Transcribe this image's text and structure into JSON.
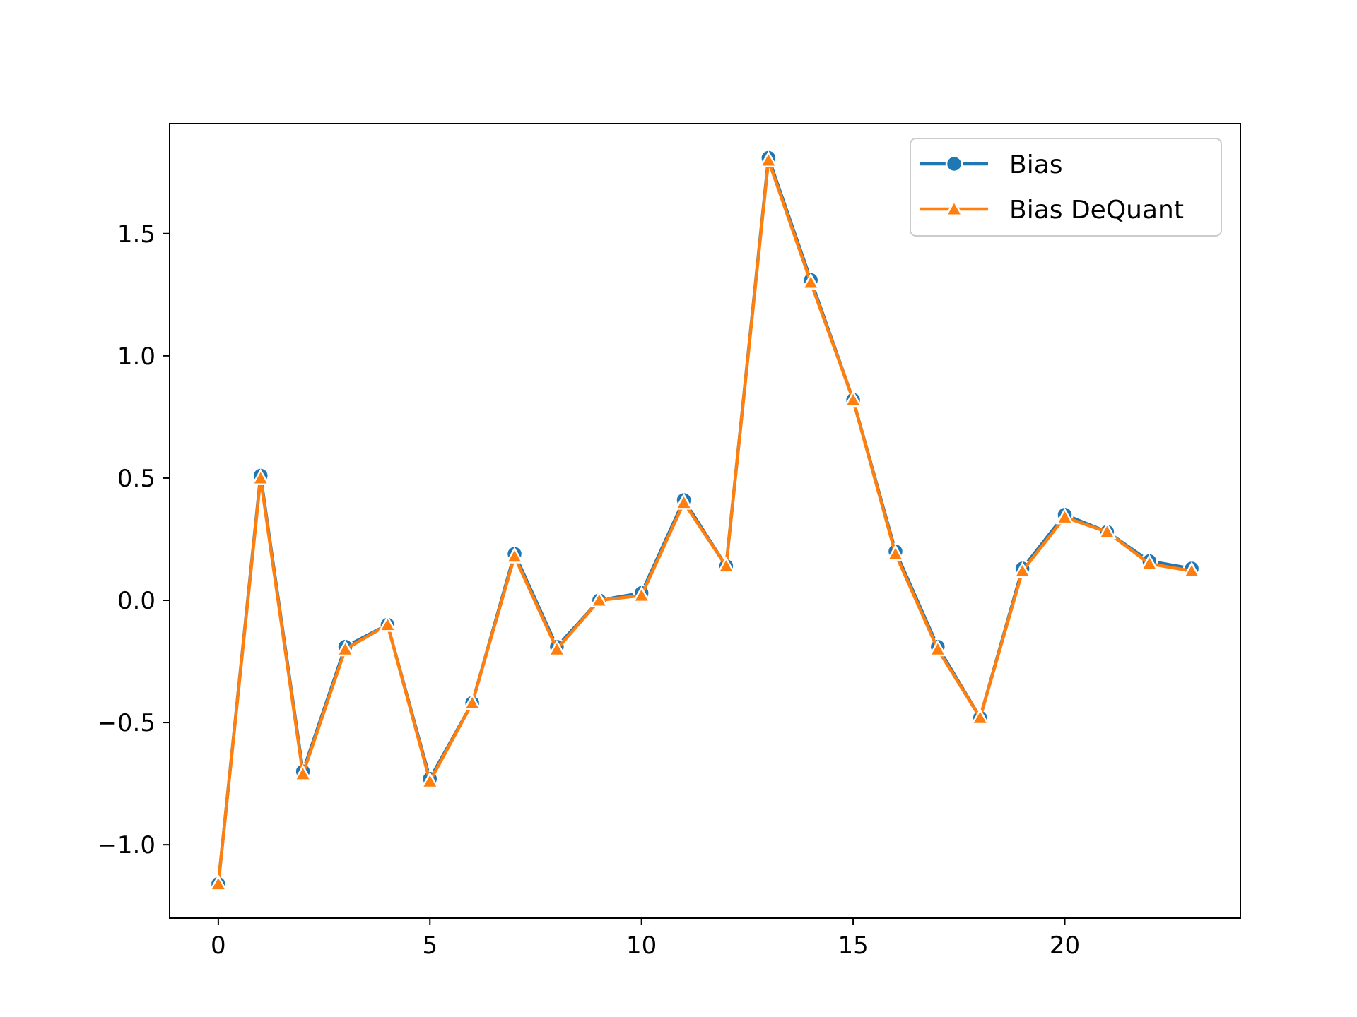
{
  "chart_data": {
    "type": "line",
    "title": "",
    "xlabel": "",
    "ylabel": "",
    "x": [
      0,
      1,
      2,
      3,
      4,
      5,
      6,
      7,
      8,
      9,
      10,
      11,
      12,
      13,
      14,
      15,
      16,
      17,
      18,
      19,
      20,
      21,
      22,
      23
    ],
    "xlim": [
      -1.15,
      24.15
    ],
    "ylim": [
      -1.3,
      1.95
    ],
    "x_ticks": [
      0,
      5,
      10,
      15,
      20
    ],
    "x_tick_labels": [
      "0",
      "5",
      "10",
      "15",
      "20"
    ],
    "y_ticks": [
      -1.0,
      -0.5,
      0.0,
      0.5,
      1.0,
      1.5
    ],
    "y_tick_labels": [
      "−1.0",
      "−0.5",
      "0.0",
      "0.5",
      "1.0",
      "1.5"
    ],
    "grid": false,
    "legend_position": "top-right",
    "series": [
      {
        "name": "Bias",
        "color": "#1f77b4",
        "marker": "circle",
        "values": [
          -1.16,
          0.51,
          -0.7,
          -0.19,
          -0.1,
          -0.73,
          -0.42,
          0.19,
          -0.19,
          0.0,
          0.03,
          0.41,
          0.14,
          1.81,
          1.31,
          0.82,
          0.2,
          -0.19,
          -0.48,
          0.13,
          0.35,
          0.28,
          0.16,
          0.13
        ]
      },
      {
        "name": "Bias DeQuant",
        "color": "#ff7f0e",
        "marker": "triangle",
        "values": [
          -1.16,
          0.5,
          -0.71,
          -0.2,
          -0.1,
          -0.74,
          -0.42,
          0.18,
          -0.2,
          0.0,
          0.02,
          0.4,
          0.14,
          1.8,
          1.3,
          0.82,
          0.19,
          -0.2,
          -0.48,
          0.12,
          0.34,
          0.28,
          0.15,
          0.12
        ]
      }
    ]
  }
}
